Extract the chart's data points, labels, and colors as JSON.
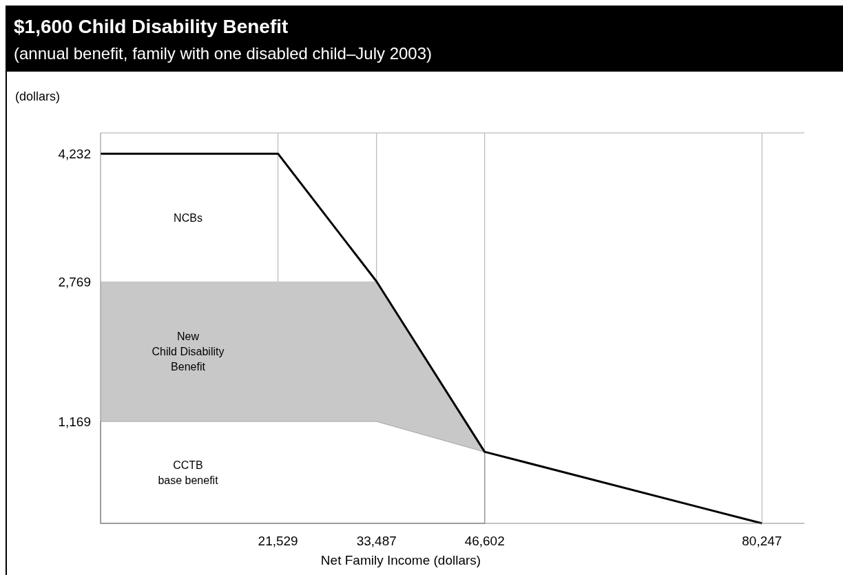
{
  "chart_data": {
    "type": "line",
    "title": "$1,600 Child Disability Benefit",
    "subtitle": "(annual benefit, family with one disabled child–July 2003)",
    "xlabel": "Net Family Income (dollars)",
    "ylabel": "(dollars)",
    "xlim": [
      0,
      85400
    ],
    "ylim": [
      0,
      4470
    ],
    "xticks": [
      {
        "value": 21529,
        "label": "21,529"
      },
      {
        "value": 33487,
        "label": "33,487"
      },
      {
        "value": 46602,
        "label": "46,602"
      },
      {
        "value": 80247,
        "label": "80,247"
      }
    ],
    "yticks": [
      {
        "value": 1169,
        "label": "1,169"
      },
      {
        "value": 2769,
        "label": "2,769"
      },
      {
        "value": 4232,
        "label": "4,232"
      }
    ],
    "grid": "x",
    "stacked": true,
    "series": [
      {
        "type": "area",
        "color": "#ffffff",
        "x": [
          0,
          33487,
          46602
        ],
        "values": [
          1169,
          1169,
          819
        ]
      },
      {
        "type": "area",
        "color": "#c8c8c8",
        "x": [
          0,
          33487,
          46602
        ],
        "values": [
          1600,
          1600,
          0
        ]
      },
      {
        "color": "#000000",
        "x": [
          0,
          21529,
          33487,
          46602,
          80247
        ],
        "values": [
          4232,
          4232,
          2769,
          819,
          0
        ]
      }
    ],
    "annotations": [
      "NCBs",
      "New\nChild Disability\nBenefit",
      "CCTB\nbase benefit"
    ]
  }
}
